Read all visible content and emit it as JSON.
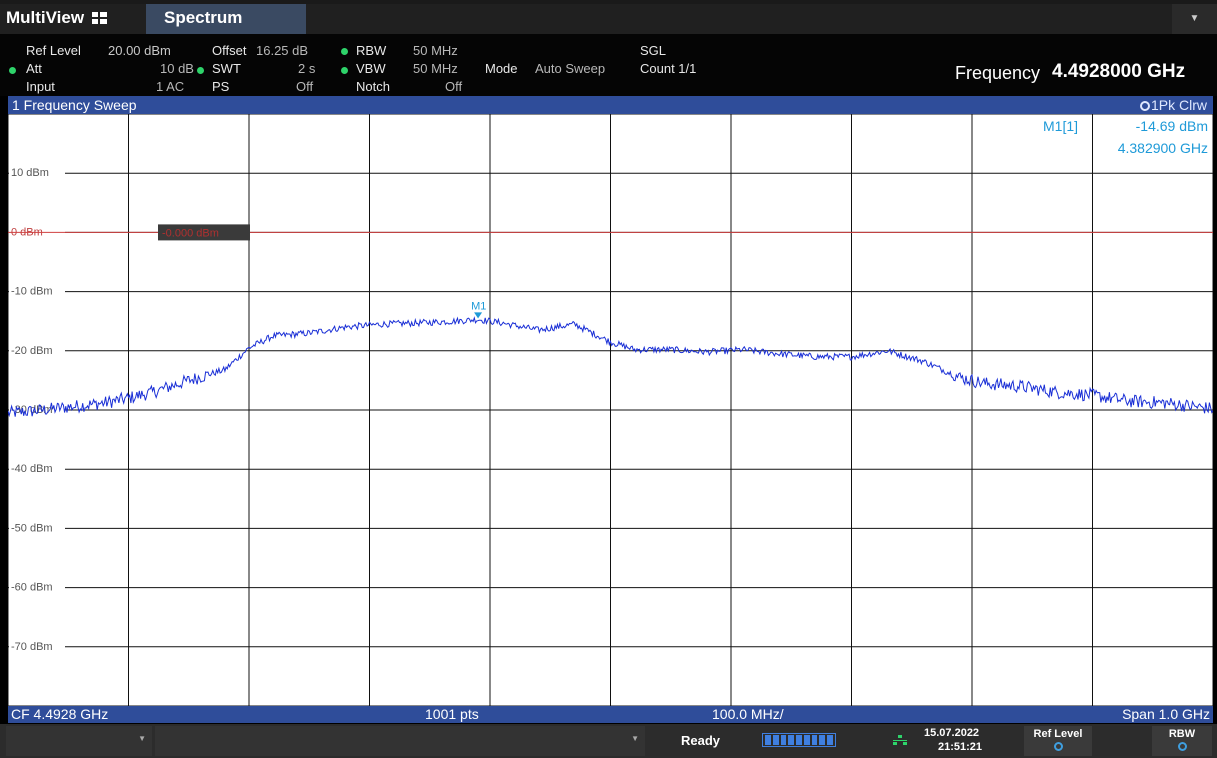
{
  "tabs": {
    "multiview": "MultiView",
    "spectrum": "Spectrum",
    "dropdown": "▼"
  },
  "info": {
    "ref_level_label": "Ref Level",
    "ref_level_value": "20.00 dBm",
    "offset_label": "Offset",
    "offset_value": "16.25 dB",
    "rbw_label": "RBW",
    "rbw_value": "50 MHz",
    "att_label": "Att",
    "att_value": "10 dB",
    "swt_label": "SWT",
    "swt_value": "2 s",
    "vbw_label": "VBW",
    "vbw_value": "50 MHz",
    "mode_label": "Mode",
    "mode_value": "Auto Sweep",
    "input_label": "Input",
    "input_value": "1 AC",
    "ps_label": "PS",
    "ps_value": "Off",
    "notch_label": "Notch",
    "notch_value": "Off",
    "sgl_label": "SGL",
    "count_label": "Count 1/1",
    "frequency_label": "Frequency",
    "frequency_value": "4.4928000 GHz"
  },
  "sweep": {
    "title": "1 Frequency Sweep",
    "trace": "1Pk Clrw"
  },
  "marker": {
    "readout_name": "M1[1]",
    "readout_level": "-14.69 dBm",
    "readout_freq": "4.382900 GHz",
    "label": "M1"
  },
  "threshold": {
    "label": "-0.000 dBm"
  },
  "footer": {
    "cf": "CF 4.4928 GHz",
    "pts": "1001 pts",
    "div": "100.0 MHz/",
    "span": "Span 1.0 GHz"
  },
  "status": {
    "ready": "Ready",
    "date": "15.07.2022",
    "time": "21:51:21",
    "ref_level_btn": "Ref Level",
    "rbw_btn": "RBW"
  },
  "colors": {
    "trace": "#1a2fd6",
    "threshold": "#d04040",
    "marker": "#1e9ad8",
    "header": "#2f4d9a"
  },
  "chart_data": {
    "type": "line",
    "yticks": [
      "10 dBm",
      "0 dBm",
      "-10 dBm",
      "-20 dBm",
      "-30 dBm",
      "-40 dBm",
      "-50 dBm",
      "-60 dBm",
      "-70 dBm"
    ],
    "ylim": [
      -80,
      20
    ],
    "xlim": [
      3.9928,
      4.9928
    ],
    "x_unit": "GHz",
    "y_unit": "dBm",
    "grid": true,
    "threshold_dbm": 0,
    "marker": {
      "x": 4.3829,
      "y": -14.69
    },
    "series": [
      {
        "x": [
          3.9928,
          4.0128,
          4.0428,
          4.0728,
          4.0928,
          4.1128,
          4.1428,
          4.1728,
          4.1928,
          4.2128,
          4.2428,
          4.2728,
          4.3028,
          4.3328,
          4.3629,
          4.3829,
          4.4028,
          4.4328,
          4.4628,
          4.4928,
          4.5128,
          4.5428,
          4.5728,
          4.6028,
          4.6328,
          4.6628,
          4.6928,
          4.7228,
          4.7528,
          4.7828,
          4.8028,
          4.8328,
          4.8628,
          4.8928,
          4.9228,
          4.9528,
          4.9928
        ],
        "y": [
          -30.5,
          -30.2,
          -29.5,
          -28.8,
          -28.0,
          -27.0,
          -25.0,
          -23.2,
          -19.5,
          -17.5,
          -17.0,
          -16.0,
          -15.5,
          -15.3,
          -15.0,
          -14.7,
          -15.3,
          -16.5,
          -15.5,
          -18.5,
          -19.8,
          -19.8,
          -20.2,
          -19.8,
          -20.5,
          -21.0,
          -21.0,
          -20.0,
          -21.8,
          -24.5,
          -25.5,
          -26.0,
          -27.0,
          -27.5,
          -28.5,
          -28.8,
          -29.8
        ]
      }
    ]
  }
}
